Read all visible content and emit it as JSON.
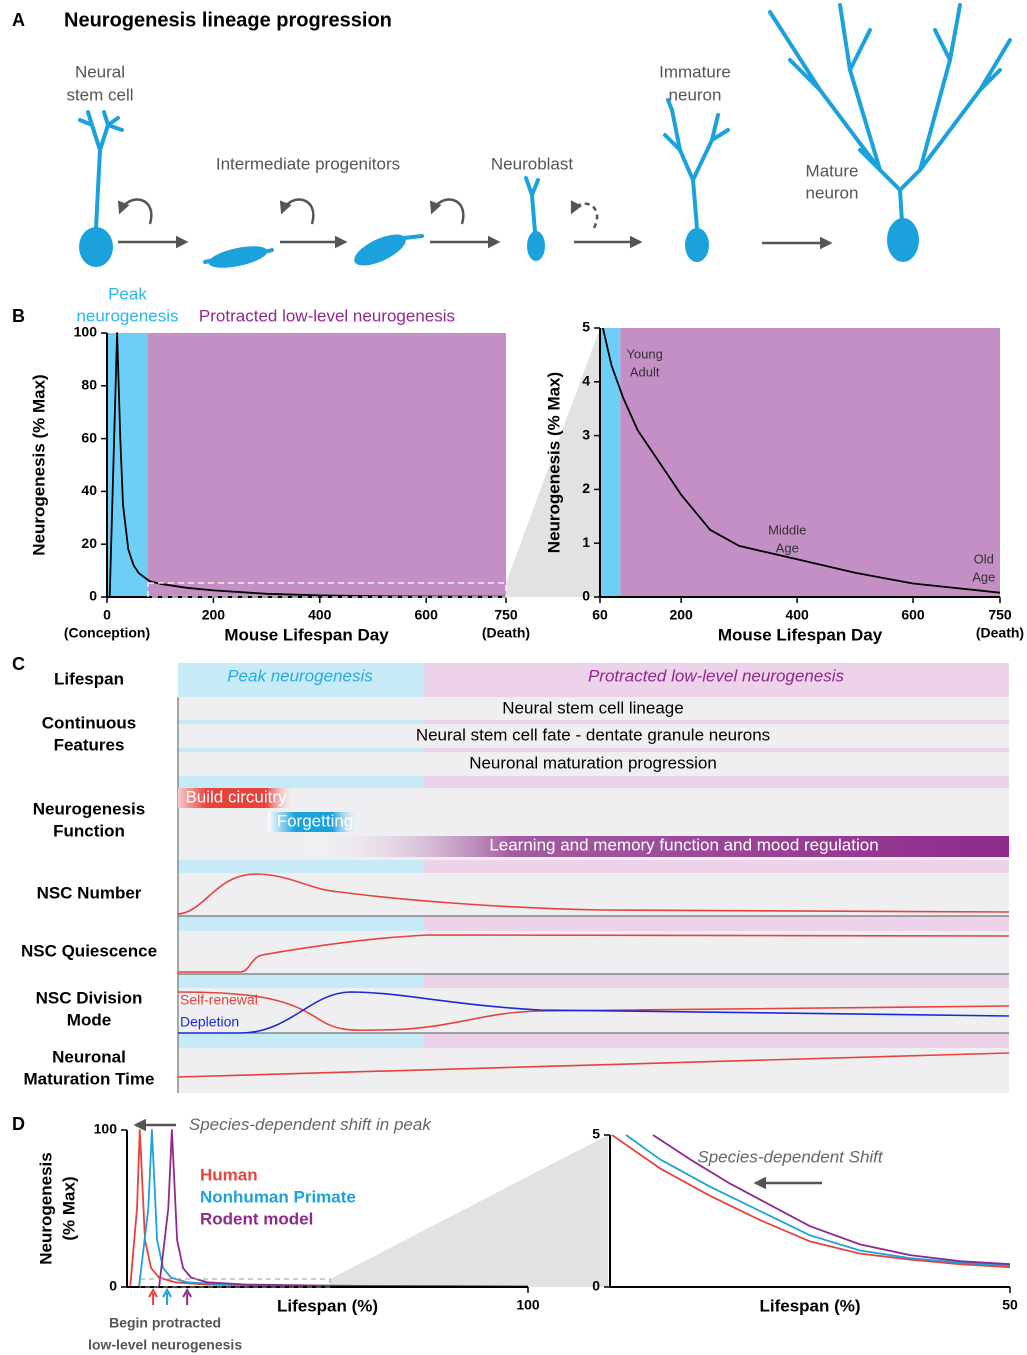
{
  "panel_a": {
    "letter": "A",
    "title": "Neurogenesis lineage progression",
    "stages": [
      [
        "Neural",
        "stem cell"
      ],
      [
        "Intermediate progenitors"
      ],
      [
        "Neuroblast"
      ],
      [
        "Immature",
        "neuron"
      ],
      [
        "Mature",
        "neuron"
      ]
    ]
  },
  "panel_b": {
    "letter": "B"
  },
  "panel_c": {
    "letter": "C",
    "header": {
      "label": "Lifespan",
      "phases": [
        "Peak neurogenesis",
        "Protracted low-level neurogenesis"
      ]
    },
    "rows": [
      {
        "label": [
          "Continuous",
          "Features"
        ],
        "items": [
          "Neural stem cell lineage",
          "Neural stem cell fate - dentate granule neurons",
          "Neuronal maturation progression"
        ]
      },
      {
        "label": [
          "Neurogenesis",
          "Function"
        ],
        "items": [
          "Build circuitry",
          "Forgetting",
          "Learning and memory function and mood regulation"
        ]
      },
      {
        "label": [
          "NSC Number"
        ]
      },
      {
        "label": [
          "NSC Quiescence"
        ]
      },
      {
        "label": [
          "NSC Division",
          "Mode"
        ],
        "items": [
          "Self-renewal",
          "Depletion"
        ]
      },
      {
        "label": [
          "Neuronal",
          "Maturation Time"
        ]
      }
    ]
  },
  "panel_d": {
    "letter": "D"
  },
  "chart_data": [
    {
      "type": "line",
      "ylabel": [
        "Neurogenesis (% Max)"
      ],
      "xlabel": "Mouse Lifespan Day",
      "xlim": [
        0,
        750
      ],
      "ylim": [
        0,
        100
      ],
      "xticks": [
        0,
        200,
        400,
        600,
        750
      ],
      "yticks": [
        0,
        20,
        40,
        60,
        80,
        100
      ],
      "regions": [
        {
          "start": 0,
          "end": 77,
          "color": "#6ecff6",
          "label": [
            "Peak",
            "neurogenesis"
          ],
          "label_color": "#29b6ea"
        },
        {
          "start": 77,
          "end": 750,
          "color": "#c48fc4",
          "label": [
            "Protracted low-level neurogenesis"
          ],
          "label_color": "#92278f"
        }
      ],
      "series": [
        {
          "color": "#000000",
          "x": [
            5,
            12,
            19,
            25,
            30,
            40,
            50,
            60,
            80,
            100,
            150,
            200,
            300,
            400,
            500,
            600,
            750
          ],
          "values": [
            0,
            50,
            100,
            60,
            35,
            18,
            12,
            9,
            6,
            5,
            3.5,
            2.5,
            1.2,
            0.6,
            0.3,
            0.2,
            0.1
          ]
        }
      ],
      "annotations": [
        {
          "lines": [
            "(Conception)"
          ],
          "x": 0
        },
        {
          "lines": [
            "(Death)"
          ],
          "x": 750
        }
      ]
    },
    {
      "type": "line",
      "ylabel": [
        "Neurogenesis (% Max)"
      ],
      "xlabel": "Mouse Lifespan Day",
      "xlim": [
        60,
        750
      ],
      "ylim": [
        0,
        5
      ],
      "xticks": [
        60,
        200,
        400,
        600,
        750
      ],
      "yticks": [
        0,
        1,
        2,
        3,
        4,
        5
      ],
      "regions": [
        {
          "start": 60,
          "end": 95,
          "color": "#6ecff6"
        },
        {
          "start": 95,
          "end": 750,
          "color": "#c48fc4"
        }
      ],
      "series": [
        {
          "color": "#000000",
          "x": [
            65,
            80,
            100,
            125,
            150,
            200,
            250,
            300,
            400,
            500,
            600,
            750
          ],
          "values": [
            5,
            4.3,
            3.7,
            3.1,
            2.7,
            1.9,
            1.25,
            0.95,
            0.7,
            0.45,
            0.25,
            0.08
          ]
        }
      ],
      "annotations": [
        {
          "lines": [
            "Young",
            "Adult"
          ],
          "x": 137,
          "y": 4.33
        },
        {
          "lines": [
            "Middle",
            "Age"
          ],
          "x": 383,
          "y": 1.06
        },
        {
          "lines": [
            "Old",
            "Age"
          ],
          "x": 722,
          "y": 0.52
        },
        {
          "lines": [
            "(Death)"
          ],
          "x": 750
        }
      ]
    },
    {
      "type": "line",
      "ylabel": [
        "Neurogenesis",
        "(% Max)"
      ],
      "xlabel": "Lifespan (%)",
      "xlim": [
        0,
        100
      ],
      "ylim": [
        0,
        100
      ],
      "xticks": [
        100
      ],
      "yticks": [
        0,
        100
      ],
      "legend": true,
      "series": [
        {
          "name": "Human",
          "color": "#e8423c",
          "x": [
            0.8,
            2.5,
            3.2,
            4.5,
            6,
            8,
            12,
            20,
            40,
            70,
            100
          ],
          "values": [
            0,
            50,
            100,
            30,
            12,
            6,
            3,
            1.5,
            0.8,
            0.5,
            0.3
          ]
        },
        {
          "name": "Nonhuman Primate",
          "color": "#1ba1dc",
          "x": [
            3,
            5.3,
            6.2,
            7.5,
            9,
            11,
            15,
            25,
            45,
            70,
            100
          ],
          "values": [
            0,
            50,
            100,
            30,
            12,
            6,
            3,
            1.5,
            0.8,
            0.5,
            0.3
          ]
        },
        {
          "name": "Rodent model",
          "color": "#8e2a8b",
          "x": [
            8,
            10.3,
            11.2,
            12.5,
            14,
            16,
            20,
            30,
            50,
            75,
            100
          ],
          "values": [
            0,
            50,
            100,
            30,
            12,
            6,
            3,
            1.5,
            0.8,
            0.5,
            0.3
          ]
        }
      ],
      "markers": [
        {
          "x": 6.5,
          "color": "#e8423c"
        },
        {
          "x": 10,
          "color": "#1ba1dc"
        },
        {
          "x": 15,
          "color": "#8e2a8b"
        }
      ],
      "annotations": [
        {
          "lines": [
            "Species-dependent shift in peak"
          ],
          "x": 45.6,
          "y": 103,
          "style": "italic"
        },
        {
          "lines": [
            "Begin protracted",
            "low-level neurogenesis"
          ],
          "x": 9.5
        }
      ]
    },
    {
      "type": "line",
      "xlabel": "Lifespan (%)",
      "xlim": [
        10,
        50
      ],
      "ylim": [
        0,
        5
      ],
      "xticks": [
        50
      ],
      "yticks": [
        0,
        5
      ],
      "series": [
        {
          "color": "#e8423c",
          "x": [
            10.2,
            15,
            20,
            25,
            30,
            35,
            40,
            45,
            50
          ],
          "values": [
            5,
            3.9,
            3.0,
            2.2,
            1.5,
            1.1,
            0.9,
            0.75,
            0.65
          ]
        },
        {
          "color": "#1ba1dc",
          "x": [
            11.6,
            15,
            20,
            25,
            30,
            35,
            40,
            45,
            50
          ],
          "values": [
            5,
            4.2,
            3.3,
            2.5,
            1.7,
            1.2,
            0.95,
            0.8,
            0.7
          ]
        },
        {
          "color": "#8e2a8b",
          "x": [
            14.3,
            18,
            22,
            26,
            30,
            35,
            40,
            45,
            50
          ],
          "values": [
            5,
            4.2,
            3.4,
            2.7,
            2.0,
            1.4,
            1.05,
            0.85,
            0.75
          ]
        }
      ],
      "annotations": [
        {
          "lines": [
            "Species-dependent Shift"
          ],
          "x": 28,
          "y": 4.24,
          "style": "italic"
        }
      ]
    }
  ]
}
